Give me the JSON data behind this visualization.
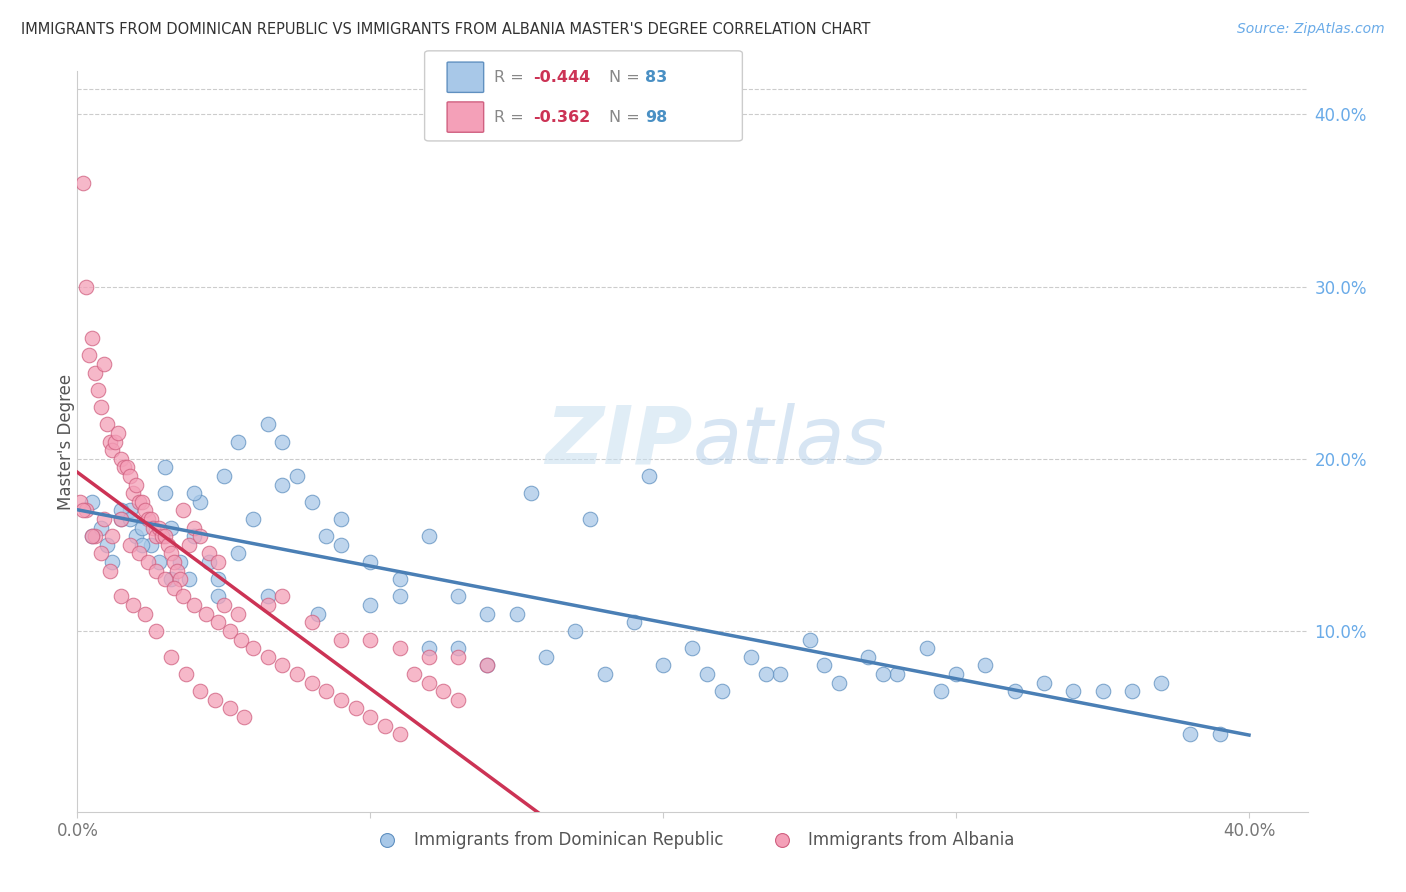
{
  "title": "IMMIGRANTS FROM DOMINICAN REPUBLIC VS IMMIGRANTS FROM ALBANIA MASTER'S DEGREE CORRELATION CHART",
  "source": "Source: ZipAtlas.com",
  "ylabel": "Master's Degree",
  "right_yticks": [
    "40.0%",
    "30.0%",
    "20.0%",
    "10.0%"
  ],
  "right_ytick_vals": [
    0.4,
    0.3,
    0.2,
    0.1
  ],
  "xlim": [
    0.0,
    0.42
  ],
  "ylim": [
    -0.005,
    0.425
  ],
  "color_blue": "#a8c8e8",
  "color_pink": "#f4a0b8",
  "color_blue_edge": "#6090c0",
  "color_pink_edge": "#d06080",
  "color_line_blue": "#4a7fb5",
  "color_line_pink": "#cc3355",
  "color_right_axis": "#6aabe8",
  "blue_scatter_x": [
    0.005,
    0.008,
    0.01,
    0.012,
    0.015,
    0.018,
    0.02,
    0.022,
    0.025,
    0.028,
    0.03,
    0.032,
    0.035,
    0.038,
    0.04,
    0.042,
    0.045,
    0.048,
    0.05,
    0.055,
    0.06,
    0.065,
    0.07,
    0.075,
    0.08,
    0.085,
    0.09,
    0.1,
    0.11,
    0.12,
    0.13,
    0.14,
    0.015,
    0.022,
    0.03,
    0.04,
    0.055,
    0.07,
    0.09,
    0.11,
    0.13,
    0.15,
    0.17,
    0.19,
    0.21,
    0.23,
    0.25,
    0.27,
    0.29,
    0.31,
    0.33,
    0.35,
    0.37,
    0.39,
    0.005,
    0.018,
    0.032,
    0.048,
    0.065,
    0.082,
    0.1,
    0.12,
    0.14,
    0.16,
    0.18,
    0.2,
    0.22,
    0.24,
    0.26,
    0.28,
    0.3,
    0.32,
    0.34,
    0.36,
    0.38,
    0.155,
    0.175,
    0.195,
    0.215,
    0.235,
    0.255,
    0.275,
    0.295
  ],
  "blue_scatter_y": [
    0.155,
    0.16,
    0.15,
    0.14,
    0.165,
    0.17,
    0.155,
    0.16,
    0.15,
    0.14,
    0.18,
    0.16,
    0.14,
    0.13,
    0.155,
    0.175,
    0.14,
    0.13,
    0.19,
    0.145,
    0.165,
    0.22,
    0.185,
    0.19,
    0.175,
    0.155,
    0.165,
    0.14,
    0.13,
    0.155,
    0.12,
    0.11,
    0.17,
    0.15,
    0.195,
    0.18,
    0.21,
    0.21,
    0.15,
    0.12,
    0.09,
    0.11,
    0.1,
    0.105,
    0.09,
    0.085,
    0.095,
    0.085,
    0.09,
    0.08,
    0.07,
    0.065,
    0.07,
    0.04,
    0.175,
    0.165,
    0.13,
    0.12,
    0.12,
    0.11,
    0.115,
    0.09,
    0.08,
    0.085,
    0.075,
    0.08,
    0.065,
    0.075,
    0.07,
    0.075,
    0.075,
    0.065,
    0.065,
    0.065,
    0.04,
    0.18,
    0.165,
    0.19,
    0.075,
    0.075,
    0.08,
    0.075,
    0.065
  ],
  "pink_scatter_x": [
    0.001,
    0.002,
    0.003,
    0.004,
    0.005,
    0.006,
    0.007,
    0.008,
    0.009,
    0.01,
    0.011,
    0.012,
    0.013,
    0.014,
    0.015,
    0.016,
    0.017,
    0.018,
    0.019,
    0.02,
    0.021,
    0.022,
    0.023,
    0.024,
    0.025,
    0.026,
    0.027,
    0.028,
    0.029,
    0.03,
    0.031,
    0.032,
    0.033,
    0.034,
    0.035,
    0.036,
    0.038,
    0.04,
    0.042,
    0.045,
    0.048,
    0.05,
    0.055,
    0.065,
    0.07,
    0.08,
    0.09,
    0.1,
    0.11,
    0.12,
    0.13,
    0.14,
    0.003,
    0.006,
    0.009,
    0.012,
    0.015,
    0.018,
    0.021,
    0.024,
    0.027,
    0.03,
    0.033,
    0.036,
    0.04,
    0.044,
    0.048,
    0.052,
    0.056,
    0.06,
    0.065,
    0.07,
    0.075,
    0.08,
    0.085,
    0.09,
    0.095,
    0.1,
    0.105,
    0.11,
    0.115,
    0.12,
    0.125,
    0.13,
    0.002,
    0.005,
    0.008,
    0.011,
    0.015,
    0.019,
    0.023,
    0.027,
    0.032,
    0.037,
    0.042,
    0.047,
    0.052,
    0.057
  ],
  "pink_scatter_y": [
    0.175,
    0.36,
    0.3,
    0.26,
    0.27,
    0.25,
    0.24,
    0.23,
    0.255,
    0.22,
    0.21,
    0.205,
    0.21,
    0.215,
    0.2,
    0.195,
    0.195,
    0.19,
    0.18,
    0.185,
    0.175,
    0.175,
    0.17,
    0.165,
    0.165,
    0.16,
    0.155,
    0.16,
    0.155,
    0.155,
    0.15,
    0.145,
    0.14,
    0.135,
    0.13,
    0.17,
    0.15,
    0.16,
    0.155,
    0.145,
    0.14,
    0.115,
    0.11,
    0.115,
    0.12,
    0.105,
    0.095,
    0.095,
    0.09,
    0.085,
    0.085,
    0.08,
    0.17,
    0.155,
    0.165,
    0.155,
    0.165,
    0.15,
    0.145,
    0.14,
    0.135,
    0.13,
    0.125,
    0.12,
    0.115,
    0.11,
    0.105,
    0.1,
    0.095,
    0.09,
    0.085,
    0.08,
    0.075,
    0.07,
    0.065,
    0.06,
    0.055,
    0.05,
    0.045,
    0.04,
    0.075,
    0.07,
    0.065,
    0.06,
    0.17,
    0.155,
    0.145,
    0.135,
    0.12,
    0.115,
    0.11,
    0.1,
    0.085,
    0.075,
    0.065,
    0.06,
    0.055,
    0.05
  ]
}
